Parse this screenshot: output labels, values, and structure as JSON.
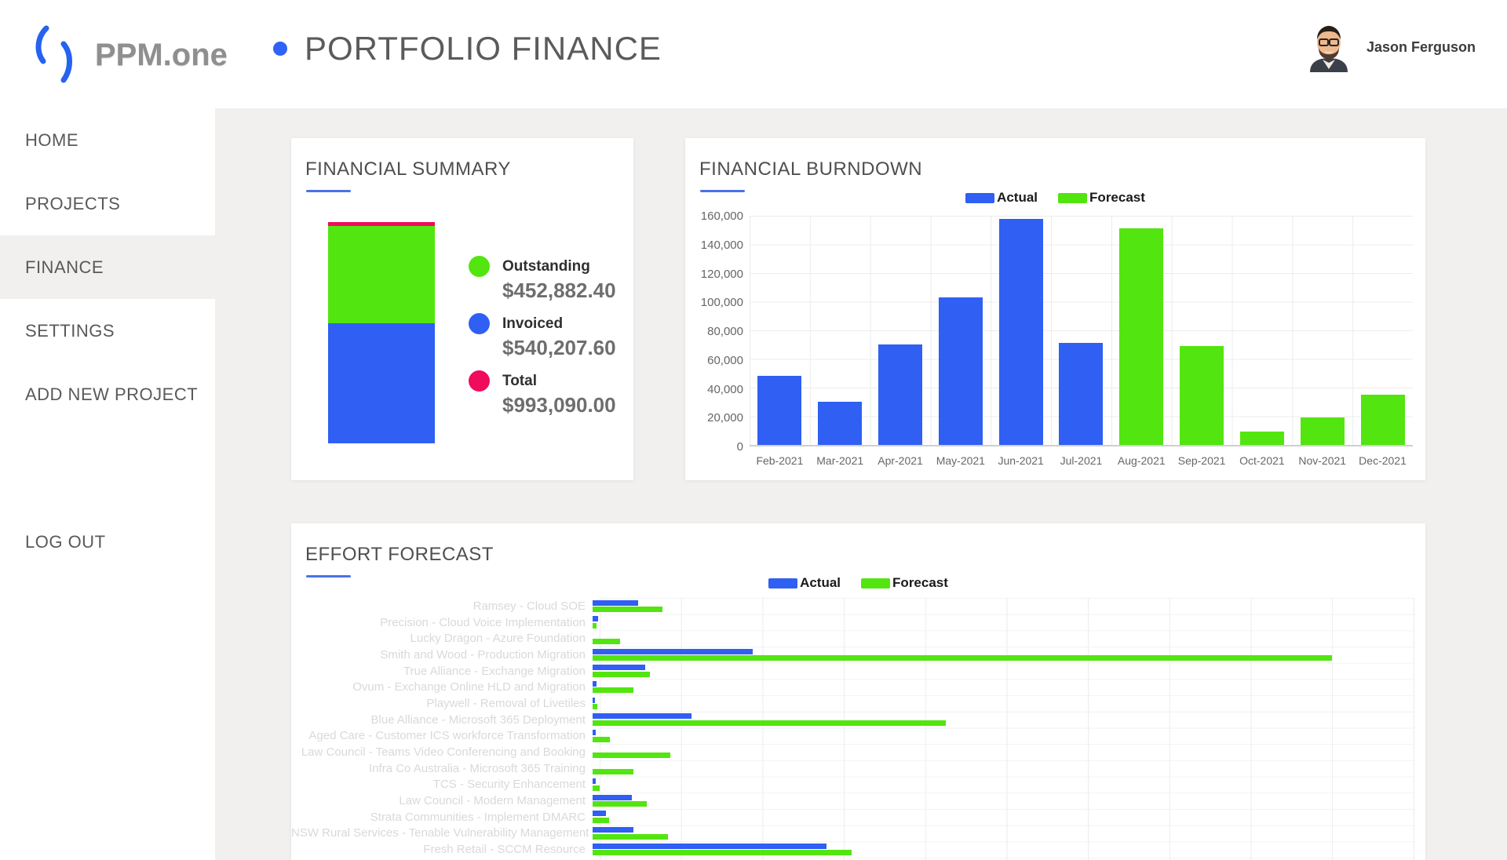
{
  "header": {
    "logo_text": "PPM.one",
    "page_title": "PORTFOLIO FINANCE",
    "user_name": "Jason Ferguson"
  },
  "sidebar": {
    "items": [
      {
        "label": "HOME",
        "active": false
      },
      {
        "label": "PROJECTS",
        "active": false
      },
      {
        "label": "FINANCE",
        "active": true
      },
      {
        "label": "SETTINGS",
        "active": false
      },
      {
        "label": "ADD NEW PROJECT",
        "active": false
      }
    ],
    "logout_label": "LOG OUT"
  },
  "colors": {
    "actual_blue": "#2f5ff3",
    "forecast_green": "#53e50f",
    "total_red": "#f00b5c",
    "accent_underline": "#4a72e8",
    "content_bg": "#f1f0ee"
  },
  "cards": {
    "financial_summary": {
      "title": "FINANCIAL SUMMARY"
    },
    "financial_burndown": {
      "title": "FINANCIAL BURNDOWN"
    },
    "effort_forecast": {
      "title": "EFFORT FORECAST"
    }
  },
  "chart_data": [
    {
      "type": "stacked-bar",
      "title": "FINANCIAL SUMMARY",
      "segments": [
        {
          "label": "Outstanding",
          "value": 452882.4,
          "display": "$452,882.40",
          "color": "#53e50f"
        },
        {
          "label": "Invoiced",
          "value": 540207.6,
          "display": "$540,207.60",
          "color": "#2f5ff3"
        },
        {
          "label": "Total",
          "value": 993090.0,
          "display": "$993,090.00",
          "color": "#f00b5c"
        }
      ],
      "legend_position": "right"
    },
    {
      "type": "bar",
      "title": "FINANCIAL BURNDOWN",
      "categories": [
        "Feb-2021",
        "Mar-2021",
        "Apr-2021",
        "May-2021",
        "Jun-2021",
        "Jul-2021",
        "Aug-2021",
        "Sep-2021",
        "Oct-2021",
        "Nov-2021",
        "Dec-2021"
      ],
      "series": [
        {
          "name": "Actual",
          "color": "#2f5ff3",
          "values": [
            48000,
            30000,
            70000,
            103000,
            158000,
            71000,
            null,
            null,
            null,
            null,
            null
          ]
        },
        {
          "name": "Forecast",
          "color": "#53e50f",
          "values": [
            null,
            null,
            null,
            null,
            null,
            null,
            151000,
            69000,
            9500,
            19000,
            35000
          ]
        }
      ],
      "ylim": [
        0,
        160000
      ],
      "ytick_step": 20000,
      "yticks": [
        "160,000",
        "140,000",
        "120,000",
        "100,000",
        "80,000",
        "60,000",
        "40,000",
        "20,000",
        "0"
      ],
      "grid": true,
      "legend_position": "top"
    },
    {
      "type": "horizontal-bar",
      "title": "EFFORT FORECAST",
      "categories": [
        "Ramsey - Cloud SOE",
        "Precision - Cloud Voice Implementation",
        "Lucky Dragon - Azure Foundation",
        "Smith and Wood - Production Migration",
        "True Alliance - Exchange Migration",
        "Ovum - Exchange Online HLD and Migration",
        "Playwell - Removal of Livetiles",
        "Blue Alliance - Microsoft 365 Deployment",
        "Aged Care - Customer ICS workforce Transformation",
        "Law Council - Teams Video Conferencing and Booking",
        "Infra Co Australia - Microsoft 365 Training",
        "TCS - Security Enhancement",
        "Law Council - Modern Management",
        "Strata Communities - Implement DMARC",
        "NSW Rural Services - Tenable Vulnerability Management",
        "Fresh Retail - SCCM Resource"
      ],
      "series": [
        {
          "name": "Actual",
          "color": "#2f5ff3",
          "values": [
            0.55,
            0.07,
            0,
            1.95,
            0.64,
            0.05,
            0.03,
            1.2,
            0.04,
            0,
            0,
            0.04,
            0.48,
            0.16,
            0.5,
            2.85
          ]
        },
        {
          "name": "Forecast",
          "color": "#53e50f",
          "values": [
            0.85,
            0.05,
            0.33,
            9.0,
            0.7,
            0.5,
            0.06,
            4.3,
            0.21,
            0.95,
            0.5,
            0.09,
            0.66,
            0.2,
            0.92,
            3.15
          ]
        }
      ],
      "xlim": [
        0,
        10
      ],
      "grid": true,
      "x_axis_labels_visible": false,
      "legend_position": "top"
    }
  ]
}
